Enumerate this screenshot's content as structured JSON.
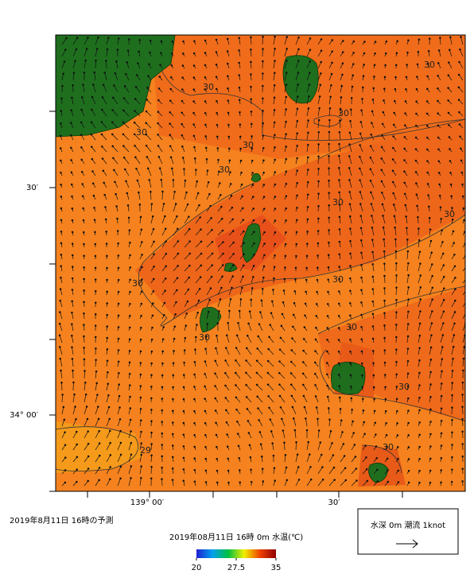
{
  "map": {
    "lat_labels": [
      "30′",
      "34° 00′"
    ],
    "lon_labels": [
      "139° 00′",
      "30′"
    ],
    "contour_labels": [
      "30",
      "30",
      "30",
      "30",
      "30",
      "30",
      "30",
      "30",
      "30",
      "30",
      "30",
      "30",
      "30",
      "30",
      "29"
    ]
  },
  "caption": "2019年8月11日  16時の予測",
  "colorbar": {
    "title": "2019年08月11日 16時 0m 水温(℃)",
    "range": [
      20,
      35
    ],
    "ticks": [
      20,
      27.5,
      35
    ]
  },
  "legend": {
    "label": "水深 0m 潮流 1knot"
  }
}
